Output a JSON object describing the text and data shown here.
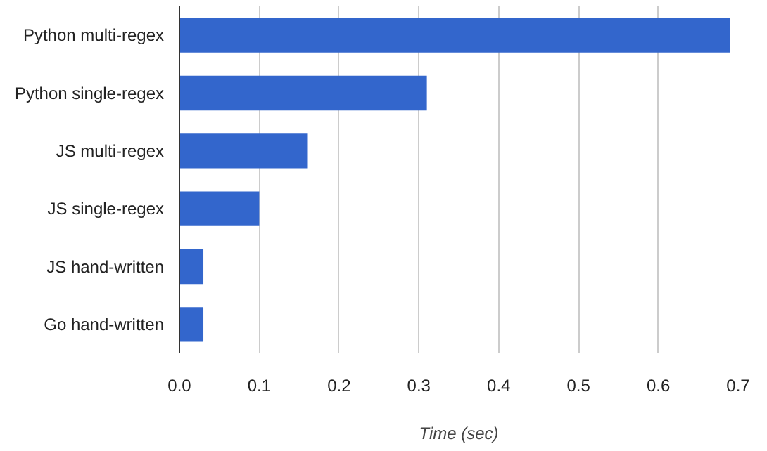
{
  "chart_data": {
    "type": "bar",
    "orientation": "horizontal",
    "xlabel": "Time (sec)",
    "categories": [
      "Python multi-regex",
      "Python single-regex",
      "JS multi-regex",
      "JS single-regex",
      "JS hand-written",
      "Go hand-written"
    ],
    "values": [
      0.69,
      0.31,
      0.16,
      0.1,
      0.03,
      0.03
    ],
    "color": "#3366cc",
    "xlim": [
      0,
      0.7
    ],
    "xticks": [
      {
        "value": 0,
        "label": "0.0"
      },
      0.1,
      0.2,
      0.3,
      0.4,
      0.5,
      0.6,
      0.7
    ],
    "grid": "x"
  }
}
